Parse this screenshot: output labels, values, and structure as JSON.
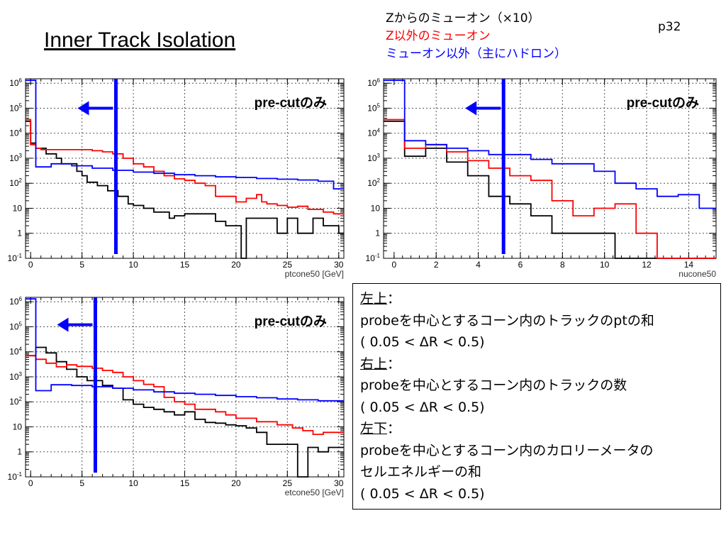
{
  "slide": {
    "title": "Inner Track Isolation",
    "page": "p32"
  },
  "legend": [
    {
      "label": "Zからのミューオン（×10）",
      "color": "#000000"
    },
    {
      "label": "Z以外のミューオン",
      "color": "#ff0000"
    },
    {
      "label": "ミューオン以外（主にハドロン）",
      "color": "#0000ff"
    }
  ],
  "description": {
    "top_left_heading": "左上",
    "top_left_text": "probeを中心とするコーン内のトラックのptの和",
    "top_left_range": "( 0.05 < ΔR < 0.5)",
    "top_right_heading": "右上",
    "top_right_text": "probeを中心とするコーン内のトラックの数",
    "top_right_range": "( 0.05 < ΔR < 0.5)",
    "bottom_left_heading": "左下",
    "bottom_left_text1": "probeを中心とするコーン内のカロリーメータの",
    "bottom_left_text2": "セルエネルギーの和",
    "bottom_left_range": "( 0.05 < ΔR < 0.5)",
    "colon": "："
  },
  "colors": {
    "z_muon": "#000000",
    "other_muon": "#ff0000",
    "hadron": "#0000ff",
    "cut": "#0000ff"
  },
  "chart_data": [
    {
      "type": "line",
      "subtype": "step-histogram",
      "xlabel": "ptcone50 [GeV]",
      "annotation": "pre-cutのみ",
      "xlim": [
        -0.5,
        30.5
      ],
      "xticks": [
        0,
        5,
        10,
        15,
        20,
        25,
        30
      ],
      "y_scale": "log",
      "ylim": [
        0.1,
        1500000
      ],
      "yticks": [
        "10^-1",
        "1",
        "10",
        "10^2",
        "10^3",
        "10^4",
        "10^5",
        "10^6"
      ],
      "grid": true,
      "cut": 8.3,
      "cut_arrow_y": 100000,
      "series": [
        {
          "color": "#000000",
          "values": [
            [
              -0.5,
              30000
            ],
            [
              0,
              4000
            ],
            [
              0.5,
              2500
            ],
            [
              1,
              2500
            ],
            [
              1.5,
              1500
            ],
            [
              2.5,
              1000
            ],
            [
              3,
              600
            ],
            [
              4.5,
              300
            ],
            [
              5,
              200
            ],
            [
              5.5,
              110
            ],
            [
              6.5,
              80
            ],
            [
              7.5,
              50
            ],
            [
              8.5,
              30
            ],
            [
              9.5,
              15
            ],
            [
              10,
              13
            ],
            [
              11,
              10
            ],
            [
              12,
              7
            ],
            [
              13.5,
              4
            ],
            [
              14,
              5
            ],
            [
              15,
              6
            ],
            [
              17.5,
              6
            ],
            [
              18,
              3
            ],
            [
              19,
              2
            ],
            [
              20,
              2
            ],
            [
              20.5,
              0.05
            ],
            [
              21,
              4
            ],
            [
              24,
              1
            ],
            [
              24.5,
              1
            ],
            [
              25,
              4
            ],
            [
              26,
              1
            ],
            [
              27,
              1
            ],
            [
              27.5,
              4
            ],
            [
              28.5,
              2
            ],
            [
              29.5,
              2
            ],
            [
              30,
              1
            ]
          ]
        },
        {
          "color": "#ff0000",
          "values": [
            [
              -0.5,
              35000
            ],
            [
              0,
              3500
            ],
            [
              0.5,
              2500
            ],
            [
              1,
              2200
            ],
            [
              6,
              2000
            ],
            [
              7,
              1800
            ],
            [
              8,
              1500
            ],
            [
              9,
              1000
            ],
            [
              10,
              600
            ],
            [
              11,
              450
            ],
            [
              12,
              300
            ],
            [
              13,
              200
            ],
            [
              14,
              150
            ],
            [
              15,
              130
            ],
            [
              16,
              100
            ],
            [
              17,
              80
            ],
            [
              18,
              30
            ],
            [
              20,
              18
            ],
            [
              21,
              25
            ],
            [
              22,
              35
            ],
            [
              22.5,
              18
            ],
            [
              23,
              15
            ],
            [
              24,
              13
            ],
            [
              25,
              11
            ],
            [
              26,
              12
            ],
            [
              27,
              9
            ],
            [
              28.5,
              7
            ],
            [
              29.5,
              6
            ],
            [
              30,
              6
            ]
          ]
        },
        {
          "color": "#0000ff",
          "values": [
            [
              -0.5,
              1300000
            ],
            [
              0.5,
              450
            ],
            [
              2,
              600
            ],
            [
              4,
              500
            ],
            [
              6,
              400
            ],
            [
              8,
              330
            ],
            [
              10,
              280
            ],
            [
              12,
              250
            ],
            [
              14,
              220
            ],
            [
              16,
              200
            ],
            [
              18,
              180
            ],
            [
              20,
              170
            ],
            [
              22,
              155
            ],
            [
              24,
              145
            ],
            [
              26,
              135
            ],
            [
              28,
              120
            ],
            [
              29.5,
              60
            ],
            [
              30,
              60
            ]
          ]
        }
      ]
    },
    {
      "type": "line",
      "subtype": "step-histogram",
      "xlabel": "nucone50",
      "annotation": "pre-cutのみ",
      "xlim": [
        -0.5,
        15.3
      ],
      "xticks": [
        0,
        2,
        4,
        6,
        8,
        10,
        12,
        14
      ],
      "y_scale": "log",
      "ylim": [
        0.1,
        1500000
      ],
      "yticks": [
        "10^-1",
        "1",
        "10",
        "10^2",
        "10^3",
        "10^4",
        "10^5",
        "10^6"
      ],
      "grid": true,
      "cut": 5.2,
      "cut_arrow_y": 100000,
      "series": [
        {
          "color": "#000000",
          "values": [
            [
              -0.5,
              30000
            ],
            [
              0.5,
              1200
            ],
            [
              1.5,
              2500
            ],
            [
              2.5,
              700
            ],
            [
              3.5,
              200
            ],
            [
              4.5,
              30
            ],
            [
              5.5,
              15
            ],
            [
              6.5,
              5
            ],
            [
              7.5,
              1
            ],
            [
              10.5,
              0.05
            ]
          ]
        },
        {
          "color": "#ff0000",
          "values": [
            [
              -0.5,
              35000
            ],
            [
              0.5,
              2500
            ],
            [
              1.5,
              3500
            ],
            [
              2.5,
              1800
            ],
            [
              3.5,
              800
            ],
            [
              4.5,
              400
            ],
            [
              5.5,
              200
            ],
            [
              6.5,
              130
            ],
            [
              7.5,
              20
            ],
            [
              8.5,
              5
            ],
            [
              9.5,
              10
            ],
            [
              10.5,
              15
            ],
            [
              11.5,
              1
            ],
            [
              12.5,
              0.05
            ]
          ]
        },
        {
          "color": "#0000ff",
          "values": [
            [
              -0.5,
              1300000
            ],
            [
              0.5,
              5000
            ],
            [
              1.5,
              3500
            ],
            [
              2.5,
              2500
            ],
            [
              3.5,
              2000
            ],
            [
              4.5,
              1400
            ],
            [
              6.5,
              900
            ],
            [
              7.5,
              600
            ],
            [
              9.5,
              300
            ],
            [
              10.5,
              100
            ],
            [
              11.5,
              60
            ],
            [
              12.5,
              30
            ],
            [
              13.5,
              35
            ],
            [
              14.5,
              10
            ]
          ]
        }
      ]
    },
    {
      "type": "line",
      "subtype": "step-histogram",
      "xlabel": "etcone50 [GeV]",
      "annotation": "pre-cutのみ",
      "xlim": [
        -0.5,
        30.5
      ],
      "xticks": [
        0,
        5,
        10,
        15,
        20,
        25,
        30
      ],
      "y_scale": "log",
      "ylim": [
        0.1,
        1500000
      ],
      "yticks": [
        "10^-1",
        "1",
        "10",
        "10^2",
        "10^3",
        "10^4",
        "10^5",
        "10^6"
      ],
      "grid": true,
      "cut": 6.3,
      "cut_arrow_y": 120000,
      "series": [
        {
          "color": "#000000",
          "values": [
            [
              -0.5,
              7000
            ],
            [
              0.5,
              15000
            ],
            [
              1.5,
              9000
            ],
            [
              2.5,
              4000
            ],
            [
              3.5,
              2000
            ],
            [
              4.5,
              1000
            ],
            [
              5.5,
              700
            ],
            [
              7,
              450
            ],
            [
              8,
              350
            ],
            [
              9,
              120
            ],
            [
              10,
              80
            ],
            [
              11,
              60
            ],
            [
              12,
              50
            ],
            [
              13,
              40
            ],
            [
              14,
              30
            ],
            [
              15,
              40
            ],
            [
              16,
              20
            ],
            [
              17,
              15
            ],
            [
              18,
              14
            ],
            [
              19,
              12
            ],
            [
              20,
              11
            ],
            [
              21,
              9
            ],
            [
              22,
              6
            ],
            [
              23,
              2
            ],
            [
              24,
              2
            ],
            [
              25,
              2
            ],
            [
              26,
              0.05
            ],
            [
              27,
              1.5
            ],
            [
              28,
              1
            ],
            [
              29,
              1.5
            ],
            [
              30,
              1.5
            ]
          ]
        },
        {
          "color": "#ff0000",
          "values": [
            [
              -0.5,
              7000
            ],
            [
              0.5,
              5000
            ],
            [
              1.5,
              3500
            ],
            [
              2.5,
              2500
            ],
            [
              3.5,
              3000
            ],
            [
              4.5,
              2600
            ],
            [
              6,
              2200
            ],
            [
              7,
              1800
            ],
            [
              8,
              1500
            ],
            [
              9,
              1000
            ],
            [
              10,
              700
            ],
            [
              11,
              500
            ],
            [
              12,
              400
            ],
            [
              13,
              150
            ],
            [
              14,
              100
            ],
            [
              15,
              80
            ],
            [
              16,
              50
            ],
            [
              18,
              40
            ],
            [
              19,
              30
            ],
            [
              20,
              22
            ],
            [
              22,
              16
            ],
            [
              24,
              12
            ],
            [
              25.5,
              9
            ],
            [
              26.5,
              7
            ],
            [
              27.5,
              5
            ],
            [
              28.5,
              6
            ],
            [
              30,
              6
            ]
          ]
        },
        {
          "color": "#0000ff",
          "values": [
            [
              -0.5,
              1300000
            ],
            [
              0.5,
              280
            ],
            [
              2,
              480
            ],
            [
              4,
              450
            ],
            [
              6,
              400
            ],
            [
              8,
              350
            ],
            [
              10,
              300
            ],
            [
              12,
              250
            ],
            [
              14,
              220
            ],
            [
              16,
              200
            ],
            [
              18,
              180
            ],
            [
              20,
              160
            ],
            [
              22,
              145
            ],
            [
              24,
              130
            ],
            [
              26,
              120
            ],
            [
              28,
              110
            ],
            [
              30,
              110
            ]
          ]
        }
      ]
    }
  ]
}
